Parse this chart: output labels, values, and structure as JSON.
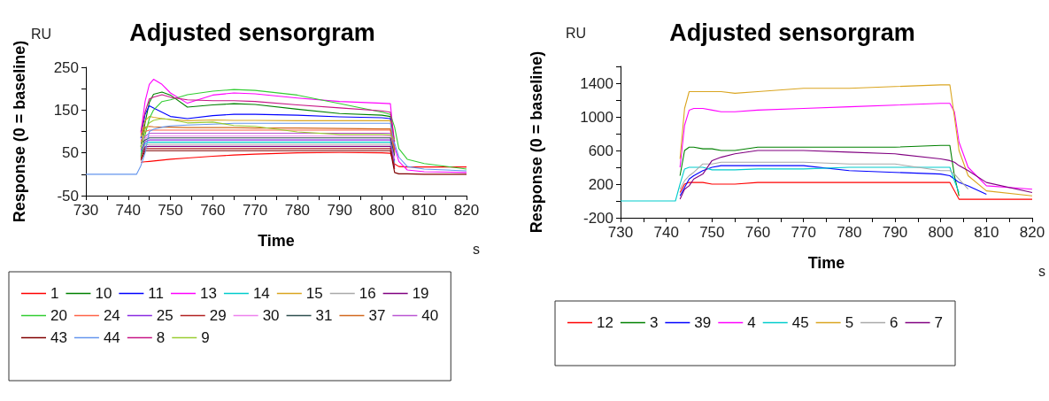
{
  "chart_data": [
    {
      "type": "line",
      "title": "Adjusted sensorgram",
      "xlabel": "Time",
      "ylabel": "Response (0 = baseline)",
      "annotations": [
        "RU",
        "s"
      ],
      "xlim": [
        730,
        820
      ],
      "xticks": [
        730,
        {
          "value": 735,
          "label": null
        },
        740,
        {
          "value": 745,
          "label": null
        },
        750,
        {
          "value": 755,
          "label": null
        },
        760,
        {
          "value": 765,
          "label": null
        },
        770,
        {
          "value": 775,
          "label": null
        },
        780,
        {
          "value": 785,
          "label": null
        },
        790,
        {
          "value": 795,
          "label": null
        },
        800,
        {
          "value": 805,
          "label": null
        },
        810,
        {
          "value": 815,
          "label": null
        },
        820
      ],
      "ylim": [
        -50,
        250
      ],
      "yticks": [
        -50,
        {
          "value": 0,
          "label": null
        },
        50,
        {
          "value": 100,
          "label": null
        },
        150,
        {
          "value": 200,
          "label": null
        },
        250
      ],
      "grid": false,
      "legend": "bottom",
      "marker": "none",
      "line_style": "solid",
      "x": [
        730,
        742,
        743,
        744,
        745,
        746,
        748,
        750,
        754,
        760,
        765,
        770,
        780,
        790,
        800,
        802,
        803,
        804,
        806,
        810,
        820
      ],
      "series": [
        {
          "name": "1",
          "color": "#ff0000",
          "values": [
            null,
            null,
            28,
            29,
            30,
            31,
            33,
            35,
            38,
            42,
            45,
            47,
            50,
            51,
            50,
            49,
            24,
            18,
            17,
            17,
            17
          ]
        },
        {
          "name": "10",
          "color": "#008000",
          "values": [
            null,
            null,
            64,
            120,
            168,
            187,
            192,
            185,
            157,
            162,
            165,
            163,
            152,
            142,
            138,
            135,
            60,
            null,
            null,
            null,
            null
          ]
        },
        {
          "name": "11",
          "color": "#0000ff",
          "values": [
            null,
            null,
            84,
            140,
            160,
            155,
            145,
            135,
            130,
            137,
            140,
            140,
            138,
            134,
            132,
            130,
            52,
            null,
            null,
            null,
            null
          ]
        },
        {
          "name": "13",
          "color": "#ff00ff",
          "values": [
            null,
            null,
            96,
            170,
            210,
            222,
            210,
            190,
            166,
            185,
            190,
            188,
            178,
            170,
            166,
            165,
            64,
            30,
            10,
            6,
            4
          ]
        },
        {
          "name": "14",
          "color": "#00cccc",
          "values": [
            null,
            null,
            52,
            72,
            75,
            75,
            75,
            75,
            75,
            75,
            75,
            75,
            75,
            75,
            75,
            75,
            28,
            null,
            null,
            null,
            null
          ]
        },
        {
          "name": "15",
          "color": "#daa520",
          "values": [
            null,
            null,
            88,
            125,
            135,
            133,
            130,
            128,
            125,
            127,
            126,
            126,
            125,
            125,
            125,
            125,
            48,
            null,
            null,
            null,
            null
          ]
        },
        {
          "name": "16",
          "color": "#a9a9a9",
          "values": [
            null,
            null,
            48,
            68,
            70,
            70,
            70,
            70,
            70,
            70,
            70,
            70,
            70,
            70,
            70,
            70,
            20,
            null,
            null,
            null,
            null
          ]
        },
        {
          "name": "19",
          "color": "#800080",
          "values": [
            null,
            null,
            44,
            64,
            65,
            65,
            65,
            65,
            65,
            65,
            65,
            65,
            65,
            65,
            65,
            65,
            16,
            null,
            null,
            null,
            null
          ]
        },
        {
          "name": "20",
          "color": "#32cd32",
          "values": [
            null,
            null,
            40,
            92,
            130,
            150,
            170,
            174,
            186,
            194,
            198,
            196,
            185,
            165,
            145,
            140,
            110,
            60,
            35,
            25,
            12
          ]
        },
        {
          "name": "24",
          "color": "#ff6347",
          "values": [
            null,
            null,
            76,
            100,
            103,
            103,
            103,
            103,
            103,
            103,
            103,
            103,
            103,
            103,
            103,
            103,
            40,
            null,
            null,
            null,
            null
          ]
        },
        {
          "name": "25",
          "color": "#8a2be2",
          "values": [
            null,
            null,
            56,
            76,
            80,
            80,
            80,
            80,
            80,
            80,
            80,
            80,
            80,
            80,
            80,
            80,
            32,
            null,
            null,
            null,
            null
          ]
        },
        {
          "name": "29",
          "color": "#b22222",
          "values": [
            null,
            null,
            36,
            60,
            60,
            60,
            60,
            60,
            60,
            60,
            60,
            60,
            60,
            60,
            60,
            60,
            12,
            null,
            null,
            null,
            null
          ]
        },
        {
          "name": "30",
          "color": "#ee82ee",
          "values": [
            null,
            null,
            68,
            84,
            89,
            89,
            89,
            89,
            89,
            89,
            89,
            89,
            89,
            89,
            89,
            89,
            36,
            null,
            null,
            null,
            null
          ]
        },
        {
          "name": "31",
          "color": "#2f4f4f",
          "values": [
            null,
            null,
            72,
            80,
            85,
            85,
            85,
            85,
            85,
            85,
            85,
            85,
            85,
            85,
            85,
            85,
            44,
            null,
            null,
            null,
            null
          ]
        },
        {
          "name": "37",
          "color": "#d2691e",
          "values": [
            null,
            null,
            92,
            110,
            112,
            111,
            110,
            110,
            109,
            109,
            109,
            108,
            108,
            107,
            106,
            106,
            56,
            null,
            null,
            null,
            null
          ]
        },
        {
          "name": "40",
          "color": "#ba55d3",
          "values": [
            null,
            null,
            80,
            88,
            96,
            96,
            96,
            96,
            96,
            96,
            96,
            96,
            96,
            96,
            96,
            96,
            68,
            null,
            null,
            null,
            null
          ]
        },
        {
          "name": "43",
          "color": "#800000",
          "values": [
            null,
            null,
            32,
            55,
            55,
            55,
            55,
            55,
            55,
            55,
            55,
            55,
            55,
            55,
            55,
            55,
            4,
            1,
            1,
            0,
            0
          ]
        },
        {
          "name": "44",
          "color": "#6495ed",
          "values": [
            0,
            0,
            20,
            50,
            100,
            105,
            110,
            113,
            115,
            117,
            119,
            119,
            119,
            119,
            119,
            119,
            72,
            40,
            18,
            12,
            8
          ]
        },
        {
          "name": "8",
          "color": "#c71585",
          "values": [
            null,
            null,
            100,
            145,
            176,
            180,
            186,
            180,
            174,
            172,
            172,
            170,
            162,
            155,
            148,
            145,
            76,
            null,
            null,
            null,
            null
          ]
        },
        {
          "name": "9",
          "color": "#9acd32",
          "values": [
            null,
            null,
            60,
            105,
            120,
            126,
            130,
            128,
            120,
            122,
            114,
            112,
            99,
            93,
            93,
            92,
            80,
            null,
            null,
            null,
            null
          ]
        }
      ]
    },
    {
      "type": "line",
      "title": "Adjusted sensorgram",
      "xlabel": "Time",
      "ylabel": "Response (0 = baseline)",
      "annotations": [
        "RU",
        "s"
      ],
      "xlim": [
        730,
        820
      ],
      "xticks": [
        730,
        {
          "value": 735,
          "label": null
        },
        740,
        {
          "value": 745,
          "label": null
        },
        750,
        {
          "value": 755,
          "label": null
        },
        760,
        {
          "value": 765,
          "label": null
        },
        770,
        {
          "value": 775,
          "label": null
        },
        780,
        {
          "value": 785,
          "label": null
        },
        790,
        {
          "value": 795,
          "label": null
        },
        800,
        {
          "value": 805,
          "label": null
        },
        810,
        {
          "value": 815,
          "label": null
        },
        820
      ],
      "ylim": [
        -200,
        1600
      ],
      "yticks": [
        -200,
        {
          "value": 0,
          "label": null
        },
        200,
        {
          "value": 400,
          "label": null
        },
        600,
        {
          "value": 800,
          "label": null
        },
        1000,
        {
          "value": 1200,
          "label": null
        },
        1400,
        {
          "value": 1600,
          "label": null
        }
      ],
      "grid": false,
      "legend": "bottom",
      "marker": "none",
      "line_style": "solid",
      "x": [
        730,
        742,
        743,
        744,
        745,
        746,
        748,
        750,
        752,
        755,
        760,
        770,
        780,
        790,
        800,
        802,
        803,
        804,
        806,
        810,
        820
      ],
      "series": [
        {
          "name": "12",
          "color": "#ff0000",
          "values": [
            null,
            null,
            100,
            200,
            220,
            220,
            220,
            200,
            200,
            200,
            220,
            220,
            220,
            220,
            220,
            220,
            120,
            20,
            20,
            20,
            20
          ]
        },
        {
          "name": "3",
          "color": "#008000",
          "values": [
            null,
            null,
            300,
            600,
            640,
            640,
            620,
            620,
            600,
            600,
            640,
            640,
            640,
            640,
            660,
            660,
            300,
            60,
            null,
            null,
            null
          ]
        },
        {
          "name": "39",
          "color": "#0000ff",
          "values": [
            null,
            null,
            60,
            160,
            260,
            300,
            360,
            400,
            420,
            420,
            420,
            420,
            360,
            340,
            320,
            300,
            260,
            220,
            180,
            80,
            null
          ]
        },
        {
          "name": "4",
          "color": "#ff00ff",
          "values": [
            null,
            null,
            400,
            900,
            1080,
            1100,
            1100,
            1080,
            1060,
            1060,
            1080,
            1100,
            1120,
            1140,
            1160,
            1160,
            1060,
            700,
            400,
            180,
            140
          ]
        },
        {
          "name": "45",
          "color": "#00cccc",
          "values": [
            0,
            0,
            200,
            380,
            400,
            400,
            400,
            370,
            370,
            370,
            380,
            380,
            400,
            400,
            400,
            400,
            240,
            100,
            null,
            null,
            null
          ]
        },
        {
          "name": "5",
          "color": "#daa520",
          "values": [
            null,
            null,
            500,
            1100,
            1300,
            1300,
            1300,
            1300,
            1300,
            1280,
            1300,
            1340,
            1340,
            1360,
            1380,
            1380,
            1000,
            600,
            300,
            120,
            60
          ]
        },
        {
          "name": "6",
          "color": "#a9a9a9",
          "values": [
            null,
            null,
            140,
            240,
            300,
            340,
            440,
            440,
            460,
            460,
            460,
            460,
            440,
            440,
            360,
            360,
            320,
            260,
            140,
            null,
            null
          ]
        },
        {
          "name": "7",
          "color": "#800080",
          "values": [
            null,
            null,
            20,
            140,
            180,
            260,
            320,
            480,
            520,
            560,
            600,
            600,
            580,
            560,
            500,
            480,
            460,
            420,
            360,
            220,
            100
          ]
        }
      ]
    }
  ]
}
